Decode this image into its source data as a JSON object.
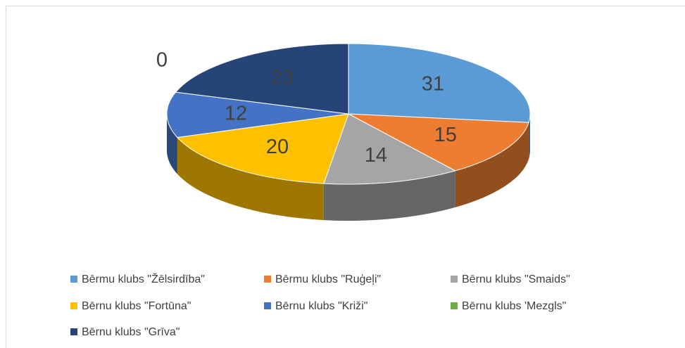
{
  "chart_data": {
    "type": "pie3d",
    "series": [
      {
        "name": "Bērmu klubs \"Žēlsirdība\"",
        "color": "#5b9bd5",
        "value": 31
      },
      {
        "name": "Bērmu klubs \"Ruģeļi\"",
        "color": "#ed7d31",
        "value": 15
      },
      {
        "name": "Bērnu klubs \"Smaids\"",
        "color": "#a5a5a5",
        "value": 14
      },
      {
        "name": "Bērnu klubs \"Fortūna\"",
        "color": "#ffc000",
        "value": 20
      },
      {
        "name": "Bērnu klubs \"Križi\"",
        "color": "#4472c4",
        "value": 12
      },
      {
        "name": "Bērnu klubs 'Mezgls\"",
        "color": "#70ad47",
        "value": 0
      },
      {
        "name": "Bērnu klubs \"Grīva\"",
        "color": "#264478",
        "value": 23
      }
    ]
  }
}
